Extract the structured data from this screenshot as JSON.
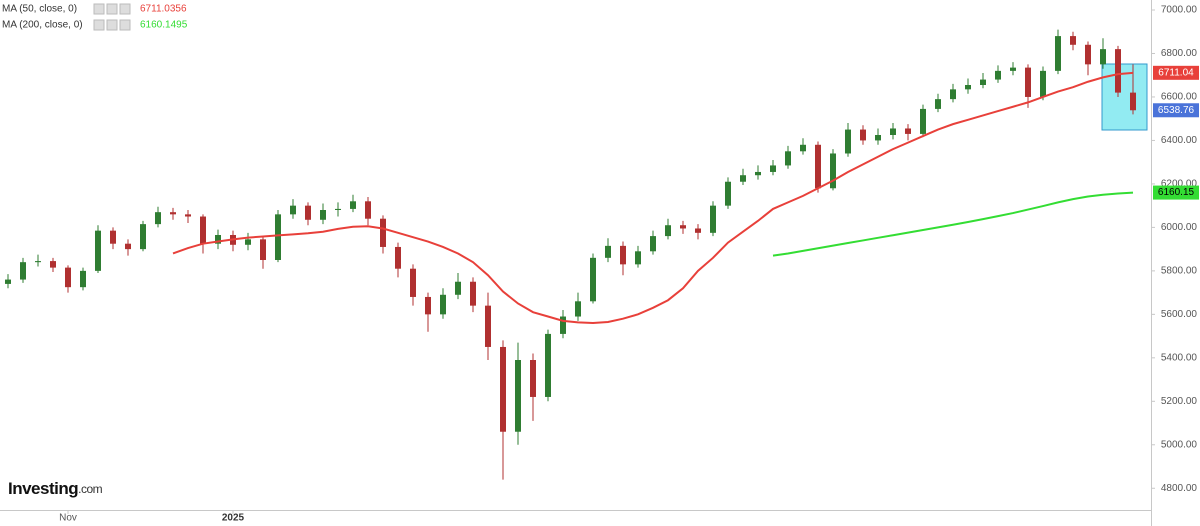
{
  "chart_data": {
    "type": "candlestick",
    "categories": [
      null,
      null,
      null,
      null,
      "Nov",
      null,
      null,
      null,
      null,
      null,
      null,
      null,
      null,
      null,
      null,
      "2025",
      null,
      null,
      null,
      null,
      null,
      null,
      null,
      null,
      null,
      null,
      null,
      null,
      null,
      null,
      null,
      null,
      null,
      null,
      null,
      null,
      null,
      null,
      null,
      null,
      null,
      null,
      null,
      null,
      null,
      null,
      null,
      null,
      null,
      null,
      null,
      null,
      null,
      null,
      null,
      null,
      null,
      null,
      null,
      null,
      null,
      null,
      null,
      null,
      null,
      null,
      null,
      null,
      null,
      null,
      null,
      null,
      null,
      null,
      null,
      null
    ],
    "open": [
      5740,
      5760,
      5840,
      5845,
      5815,
      5725,
      5800,
      5985,
      5925,
      5900,
      6015,
      6070,
      6060,
      6050,
      5925,
      5965,
      5920,
      5945,
      5850,
      6060,
      6100,
      6035,
      6080,
      6085,
      6120,
      6040,
      5910,
      5810,
      5680,
      5600,
      5690,
      5750,
      5640,
      5450,
      5060,
      5390,
      5220,
      5510,
      5590,
      5660,
      5860,
      5915,
      5830,
      5890,
      5960,
      6010,
      5995,
      5975,
      6100,
      6210,
      6240,
      6255,
      6285,
      6350,
      6380,
      6180,
      6340,
      6450,
      6400,
      6425,
      6455,
      6430,
      6545,
      6590,
      6635,
      6655,
      6680,
      6720,
      6735,
      6600,
      6720,
      6880,
      6840,
      6750,
      6820,
      6620
    ],
    "high": [
      5785,
      5860,
      5875,
      5860,
      5825,
      5815,
      6010,
      6000,
      5945,
      6030,
      6095,
      6090,
      6080,
      6060,
      5990,
      5985,
      5975,
      5960,
      6080,
      6130,
      6115,
      6110,
      6115,
      6150,
      6140,
      6055,
      5930,
      5830,
      5700,
      5720,
      5790,
      5770,
      5700,
      5480,
      5470,
      5420,
      5530,
      5620,
      5700,
      5880,
      5950,
      5935,
      5915,
      5985,
      6040,
      6030,
      6015,
      6120,
      6230,
      6270,
      6285,
      6310,
      6375,
      6410,
      6395,
      6360,
      6480,
      6470,
      6455,
      6480,
      6475,
      6565,
      6615,
      6660,
      6685,
      6710,
      6745,
      6760,
      6750,
      6740,
      6910,
      6900,
      6855,
      6870,
      6835,
      6750
    ],
    "low": [
      5720,
      5745,
      5820,
      5795,
      5700,
      5710,
      5790,
      5900,
      5870,
      5890,
      6000,
      6035,
      6020,
      5880,
      5900,
      5890,
      5895,
      5810,
      5840,
      6040,
      6010,
      6015,
      6050,
      6070,
      6010,
      5880,
      5770,
      5640,
      5520,
      5580,
      5670,
      5610,
      5390,
      4840,
      5000,
      5110,
      5200,
      5490,
      5570,
      5650,
      5840,
      5780,
      5815,
      5875,
      5945,
      5970,
      5945,
      5960,
      6085,
      6195,
      6220,
      6240,
      6270,
      6335,
      6160,
      6170,
      6325,
      6380,
      6380,
      6405,
      6400,
      6415,
      6530,
      6575,
      6615,
      6640,
      6665,
      6700,
      6550,
      6585,
      6705,
      6815,
      6700,
      6730,
      6600,
      6520
    ],
    "close": [
      5760,
      5840,
      5845,
      5815,
      5725,
      5800,
      5985,
      5925,
      5900,
      6015,
      6070,
      6060,
      6050,
      5925,
      5965,
      5920,
      5945,
      5850,
      6060,
      6100,
      6035,
      6080,
      6085,
      6120,
      6040,
      5910,
      5810,
      5680,
      5600,
      5690,
      5750,
      5640,
      5450,
      5060,
      5390,
      5220,
      5510,
      5590,
      5660,
      5860,
      5915,
      5830,
      5890,
      5960,
      6010,
      5995,
      5975,
      6100,
      6210,
      6240,
      6255,
      6285,
      6350,
      6380,
      6180,
      6340,
      6450,
      6400,
      6425,
      6455,
      6430,
      6545,
      6590,
      6635,
      6655,
      6680,
      6720,
      6735,
      6600,
      6720,
      6880,
      6840,
      6750,
      6820,
      6620,
      6538.76
    ],
    "up_color": "#2f7d32",
    "down_color": "#b03030",
    "last_tag_color": "#4a73d9",
    "moving_averages": [
      {
        "name": "MA (50, close, 0)",
        "color": "#e8403a",
        "last_value": 6711.0356,
        "last_label": "6711.04",
        "values": [
          null,
          null,
          null,
          null,
          null,
          null,
          null,
          null,
          null,
          null,
          null,
          5880,
          5905,
          5925,
          5935,
          5945,
          5953,
          5958,
          5963,
          5968,
          5973,
          5980,
          5993,
          6003,
          6005,
          5995,
          5975,
          5955,
          5935,
          5910,
          5880,
          5840,
          5780,
          5705,
          5650,
          5610,
          5590,
          5570,
          5563,
          5560,
          5565,
          5580,
          5600,
          5630,
          5665,
          5720,
          5800,
          5860,
          5930,
          5980,
          6030,
          6085,
          6115,
          6145,
          6180,
          6215,
          6255,
          6290,
          6325,
          6360,
          6390,
          6420,
          6450,
          6475,
          6495,
          6515,
          6535,
          6555,
          6575,
          6600,
          6625,
          6645,
          6670,
          6690,
          6705,
          6711.0356
        ]
      },
      {
        "name": "MA (200, close, 0)",
        "color": "#33dd33",
        "last_value": 6160.1495,
        "last_label": "6160.15",
        "values": [
          null,
          null,
          null,
          null,
          null,
          null,
          null,
          null,
          null,
          null,
          null,
          null,
          null,
          null,
          null,
          null,
          null,
          null,
          null,
          null,
          null,
          null,
          null,
          null,
          null,
          null,
          null,
          null,
          null,
          null,
          null,
          null,
          null,
          null,
          null,
          null,
          null,
          null,
          null,
          null,
          null,
          null,
          null,
          null,
          null,
          null,
          null,
          null,
          null,
          null,
          null,
          5870,
          5880,
          5892,
          5904,
          5916,
          5928,
          5940,
          5952,
          5964,
          5976,
          5988,
          6000,
          6012,
          6025,
          6038,
          6052,
          6066,
          6082,
          6098,
          6115,
          6130,
          6142,
          6150,
          6156,
          6160.1495
        ]
      }
    ],
    "ylim": [
      4700,
      7046
    ],
    "yticks": [
      {
        "value": 4800,
        "label": "4800.00"
      },
      {
        "value": 5000,
        "label": "5000.00"
      },
      {
        "value": 5200,
        "label": "5200.00"
      },
      {
        "value": 5400,
        "label": "5400.00"
      },
      {
        "value": 5600,
        "label": "5600.00"
      },
      {
        "value": 5800,
        "label": "5800.00"
      },
      {
        "value": 6000,
        "label": "6000.00"
      },
      {
        "value": 6200,
        "label": "6200.00"
      },
      {
        "value": 6400,
        "label": "6400.00"
      },
      {
        "value": 6600,
        "label": "6600.00"
      },
      {
        "value": 6800,
        "label": "6800.00"
      },
      {
        "value": 7000,
        "label": "7000.00"
      }
    ],
    "grid": false
  },
  "watermark": {
    "brand": "Investing",
    "suffix": ".com"
  }
}
